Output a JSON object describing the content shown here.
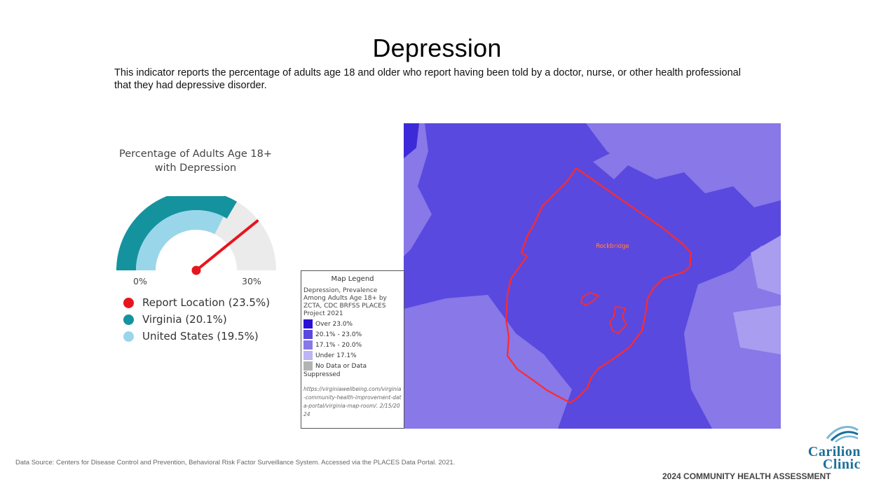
{
  "page": {
    "title": "Depression",
    "description": "This indicator reports the percentage of adults age 18 and older who report having been told by a doctor, nurse, or other health professional that they had depressive disorder."
  },
  "chart_data": {
    "type": "gauge",
    "title_line1": "Percentage of Adults Age 18+",
    "title_line2": "with Depression",
    "min": 0,
    "max": 30,
    "min_label": "0%",
    "max_label": "30%",
    "series": [
      {
        "name": "Report Location (23.5%)",
        "value": 23.5,
        "color": "#e8141e"
      },
      {
        "name": "Virginia (20.1%)",
        "value": 20.1,
        "color": "#14939e"
      },
      {
        "name": "United States (19.5%)",
        "value": 19.5,
        "color": "#9ad6ea"
      }
    ]
  },
  "map": {
    "region_label": "Rockbridge",
    "legend": {
      "title": "Map Legend",
      "subtitle": "Depression, Prevalence Among Adults Age 18+ by ZCTA, CDC BRFSS PLACES Project 2021",
      "items": [
        {
          "label": "Over 23.0%",
          "color": "#2a0fd6"
        },
        {
          "label": "20.1% - 23.0%",
          "color": "#5a49df"
        },
        {
          "label": "17.1% - 20.0%",
          "color": "#8878e8"
        },
        {
          "label": "Under 17.1%",
          "color": "#bcb4f3"
        },
        {
          "label": "No Data or Data",
          "color": "#b3b3b3"
        }
      ],
      "extra": "Suppressed",
      "url": "https://virginiawellbeing.com/virginia-community-health-improvement-data-portal/virginia-map-room/. 2/15/2024"
    }
  },
  "footer": {
    "source": "Data Source: Centers for Disease Control and Prevention, Behavioral Risk Factor Surveillance System. Accessed via the PLACES Data Portal. 2021.",
    "logo_line1": "Carilion",
    "logo_line2": "Clinic",
    "assessment": "2024 COMMUNITY HEALTH ASSESSMENT"
  }
}
